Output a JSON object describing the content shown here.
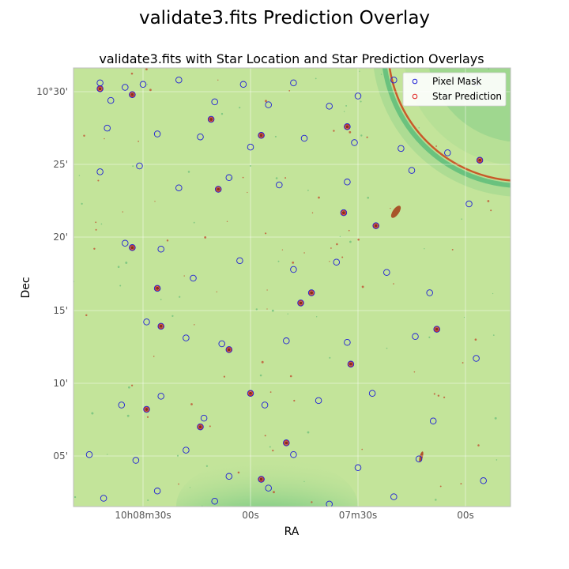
{
  "figure": {
    "suptitle": "validate3.fits Prediction Overlay"
  },
  "chart_data": {
    "type": "scatter",
    "title": "validate3.fits with Star Location and Star Prediction Overlays",
    "xlabel": "RA",
    "ylabel": "Dec",
    "xlim": [
      "10h08m47s",
      "10h06m53s"
    ],
    "ylim": [
      "10°01.5'",
      "10°31.5'"
    ],
    "x_ticks": [
      "10h08m30s",
      "00s",
      "07m30s",
      "00s"
    ],
    "y_ticks": [
      "05'",
      "10'",
      "15'",
      "20'",
      "25'",
      "10°30'"
    ],
    "grid": true,
    "legend": {
      "placement": "upper right",
      "entries": [
        "Pixel Mask",
        "Star Prediction"
      ]
    },
    "colors": {
      "pixel_mask": "#1f1fd6",
      "star_prediction": "#e01f1f",
      "background": "#c3e49a",
      "halo": "#78cc84"
    },
    "series": [
      {
        "name": "Pixel Mask",
        "points": [
          [
            "10h08m42s",
            "10°30.6'"
          ],
          [
            "10h08m39s",
            "10°29.4'"
          ],
          [
            "10h08m35s",
            "10°30.3'"
          ],
          [
            "10h08m30s",
            "10°30.5'"
          ],
          [
            "10h08m20s",
            "10°30.8'"
          ],
          [
            "10h08m10s",
            "10°29.3'"
          ],
          [
            "10h08m02s",
            "10°30.5'"
          ],
          [
            "10h07m55s",
            "10°29.1'"
          ],
          [
            "10h07m48s",
            "10°30.6'"
          ],
          [
            "10h07m38s",
            "10°29.0'"
          ],
          [
            "10h07m30s",
            "10°29.7'"
          ],
          [
            "10h07m20s",
            "10°30.8'"
          ],
          [
            "10h06m57s",
            "10°30.6'"
          ],
          [
            "10h08m40s",
            "10°27.5'"
          ],
          [
            "10h08m26s",
            "10°27.1'"
          ],
          [
            "10h08m14s",
            "10°26.9'"
          ],
          [
            "10h08m00s",
            "10°26.2'"
          ],
          [
            "10h07m45s",
            "10°26.8'"
          ],
          [
            "10h07m31s",
            "10°26.5'"
          ],
          [
            "10h07m18s",
            "10°26.1'"
          ],
          [
            "10h07m05s",
            "10°25.8'"
          ],
          [
            "10h08m42s",
            "10°24.5'"
          ],
          [
            "10h08m31s",
            "10°24.9'"
          ],
          [
            "10h08m20s",
            "10°23.4'"
          ],
          [
            "10h08m06s",
            "10°24.1'"
          ],
          [
            "10h07m52s",
            "10°23.6'"
          ],
          [
            "10h07m33s",
            "10°23.8'"
          ],
          [
            "10h07m15s",
            "10°24.6'"
          ],
          [
            "10h06m59s",
            "10°22.3'"
          ],
          [
            "10h08m35s",
            "10°19.6'"
          ],
          [
            "10h08m25s",
            "10°19.2'"
          ],
          [
            "10h08m16s",
            "10°17.2'"
          ],
          [
            "10h08m03s",
            "10°18.4'"
          ],
          [
            "10h07m48s",
            "10°17.8'"
          ],
          [
            "10h07m36s",
            "10°18.3'"
          ],
          [
            "10h07m22s",
            "10°17.6'"
          ],
          [
            "10h07m10s",
            "10°16.2'"
          ],
          [
            "10h08m29s",
            "10°14.2'"
          ],
          [
            "10h08m18s",
            "10°13.1'"
          ],
          [
            "10h08m08s",
            "10°12.7'"
          ],
          [
            "10h07m50s",
            "10°12.9'"
          ],
          [
            "10h07m33s",
            "10°12.8'"
          ],
          [
            "10h07m14s",
            "10°13.2'"
          ],
          [
            "10h06m57s",
            "10°11.7'"
          ],
          [
            "10h08m36s",
            "10°8.5'"
          ],
          [
            "10h08m25s",
            "10°9.1'"
          ],
          [
            "10h08m13s",
            "10°7.6'"
          ],
          [
            "10h07m56s",
            "10°8.5'"
          ],
          [
            "10h07m41s",
            "10°8.8'"
          ],
          [
            "10h07m26s",
            "10°9.3'"
          ],
          [
            "10h07m09s",
            "10°7.4'"
          ],
          [
            "10h08m45s",
            "10°5.1'"
          ],
          [
            "10h08m32s",
            "10°4.7'"
          ],
          [
            "10h08m18s",
            "10°5.4'"
          ],
          [
            "10h08m06s",
            "10°3.6'"
          ],
          [
            "10h07m48s",
            "10°5.1'"
          ],
          [
            "10h07m30s",
            "10°4.2'"
          ],
          [
            "10h07m13s",
            "10°4.8'"
          ],
          [
            "10h08m41s",
            "10°2.1'"
          ],
          [
            "10h08m26s",
            "10°2.6'"
          ],
          [
            "10h08m10s",
            "10°1.9'"
          ],
          [
            "10h07m55s",
            "10°2.8'"
          ],
          [
            "10h07m38s",
            "10°1.7'"
          ],
          [
            "10h07m20s",
            "10°2.2'"
          ],
          [
            "10h06m55s",
            "10°3.3'"
          ]
        ]
      },
      {
        "name": "Star Prediction",
        "points": [
          [
            "10h08m42s",
            "10°30.2'"
          ],
          [
            "10h08m33s",
            "10°29.8'"
          ],
          [
            "10h08m11s",
            "10°28.1'"
          ],
          [
            "10h07m57s",
            "10°27.0'"
          ],
          [
            "10h07m33s",
            "10°27.6'"
          ],
          [
            "10h06m56s",
            "10°25.3'"
          ],
          [
            "10h08m09s",
            "10°23.3'"
          ],
          [
            "10h07m34s",
            "10°21.7'"
          ],
          [
            "10h07m25s",
            "10°20.8'"
          ],
          [
            "10h08m33s",
            "10°19.3'"
          ],
          [
            "10h08m26s",
            "10°16.5'"
          ],
          [
            "10h07m43s",
            "10°16.2'"
          ],
          [
            "10h08m25s",
            "10°13.9'"
          ],
          [
            "10h08m06s",
            "10°12.3'"
          ],
          [
            "10h07m46s",
            "10°15.5'"
          ],
          [
            "10h08m29s",
            "10°8.2'"
          ],
          [
            "10h08m00s",
            "10°9.3'"
          ],
          [
            "10h07m50s",
            "10°5.9'"
          ],
          [
            "10h07m57s",
            "10°3.4'"
          ],
          [
            "10h08m14s",
            "10°7.0'"
          ],
          [
            "10h07m32s",
            "10°11.3'"
          ],
          [
            "10h07m08s",
            "10°13.7'"
          ]
        ]
      }
    ]
  }
}
